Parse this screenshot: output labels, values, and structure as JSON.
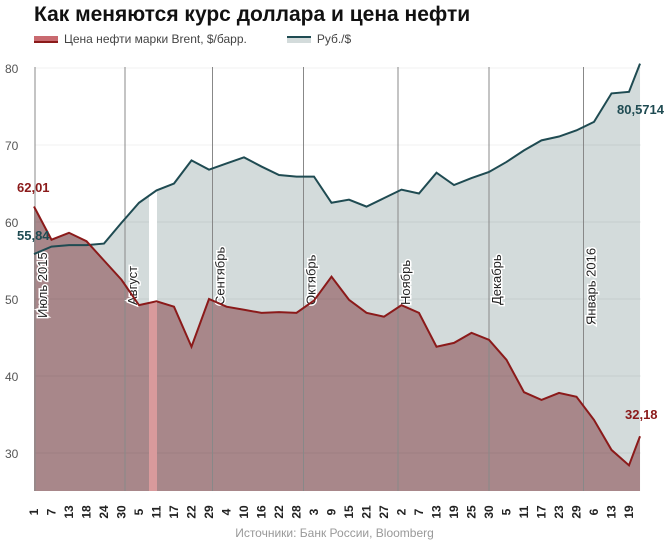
{
  "chart_data": {
    "type": "area",
    "title": "Как меняются курс доллара и цена нефти",
    "legend_position": "top-left",
    "grid": true,
    "ylim": [
      25,
      80
    ],
    "yticks": [
      "30",
      "40",
      "50",
      "60",
      "70",
      "80"
    ],
    "xtick_labels": [
      "1",
      "7",
      "13",
      "18",
      "24",
      "30",
      "5",
      "11",
      "17",
      "22",
      "29",
      "4",
      "10",
      "16",
      "22",
      "28",
      "3",
      "9",
      "15",
      "21",
      "27",
      "2",
      "7",
      "13",
      "19",
      "25",
      "30",
      "5",
      "11",
      "17",
      "23",
      "29",
      "6",
      "13",
      "19"
    ],
    "month_labels": [
      "Июль 2015",
      "Август",
      "Сентябрь",
      "Октябрь",
      "Ноябрь",
      "Декабрь",
      "Январь 2016"
    ],
    "series": [
      {
        "name": "Руб./$",
        "line_color": "#1f4b52",
        "fill_color": "#d3dbdb",
        "values": [
          55.84,
          56.8,
          57,
          57,
          57.2,
          59.9,
          62.5,
          64.1,
          65,
          68,
          66.8,
          67.6,
          68.4,
          67.2,
          66.1,
          65.9,
          65.9,
          62.5,
          62.9,
          62,
          63.1,
          64.2,
          63.7,
          66.4,
          64.8,
          65.7,
          66.5,
          67.8,
          69.3,
          70.6,
          71.1,
          71.9,
          73,
          76.7,
          76.9
        ],
        "last_value": 80.5714
      },
      {
        "name": "Цена нефти марки Brent, $/барр.",
        "line_color": "#8b1a1a",
        "fill_color": "#a8878a",
        "values": [
          62.01,
          57.7,
          58.6,
          57.5,
          55,
          52.5,
          49.2,
          49.7,
          49,
          43.8,
          50,
          49,
          48.6,
          48.2,
          48.3,
          48.2,
          49.8,
          52.9,
          49.9,
          48.2,
          47.7,
          49.2,
          48.2,
          43.8,
          44.3,
          45.6,
          44.7,
          42.1,
          37.9,
          36.9,
          37.8,
          37.3,
          34.3,
          30.4,
          28.4
        ],
        "last_value": 32.18
      }
    ],
    "annotations": {
      "oil_start": "62,01",
      "rub_start": "55,84",
      "rub_end": "80,5714",
      "oil_end": "32,18"
    },
    "source": "Источники: Банк России, Bloomberg"
  }
}
